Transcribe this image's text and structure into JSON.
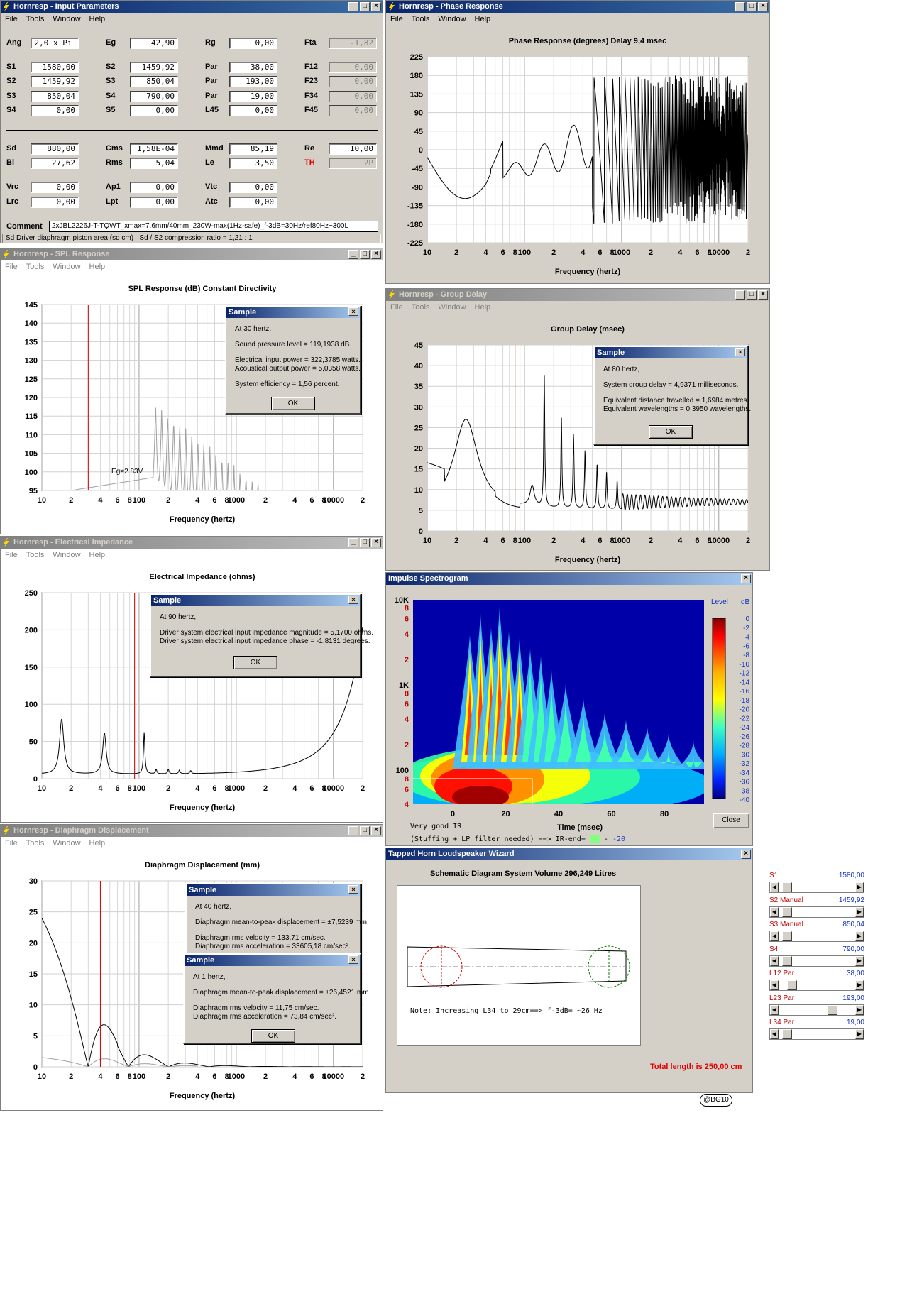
{
  "input_params": {
    "title": "Hornresp - Input Parameters",
    "menu": [
      "File",
      "Tools",
      "Window",
      "Help"
    ],
    "fields": [
      {
        "label": "Ang",
        "value": "2,0 x Pi"
      },
      {
        "label": "Eg",
        "value": "42,90"
      },
      {
        "label": "Rg",
        "value": "0,00"
      },
      {
        "label": "Fta",
        "value": "-1,82"
      },
      {
        "label": "S1",
        "value": "1580,00"
      },
      {
        "label": "S2",
        "value": "1459,92"
      },
      {
        "label": "Par",
        "value": "38,00"
      },
      {
        "label": "F12",
        "value": "0,00"
      },
      {
        "label": "S2",
        "value": "1459,92"
      },
      {
        "label": "S3",
        "value": "850,04"
      },
      {
        "label": "Par",
        "value": "193,00"
      },
      {
        "label": "F23",
        "value": "0,00"
      },
      {
        "label": "S3",
        "value": "850,04"
      },
      {
        "label": "S4",
        "value": "790,00"
      },
      {
        "label": "Par",
        "value": "19,00"
      },
      {
        "label": "F34",
        "value": "0,00"
      },
      {
        "label": "S4",
        "value": "0,00"
      },
      {
        "label": "S5",
        "value": "0,00"
      },
      {
        "label": "L45",
        "value": "0,00"
      },
      {
        "label": "F45",
        "value": "0,00"
      },
      {
        "label": "Sd",
        "value": "880,00"
      },
      {
        "label": "Cms",
        "value": "1,58E-04"
      },
      {
        "label": "Mmd",
        "value": "85,19"
      },
      {
        "label": "Re",
        "value": "10,00"
      },
      {
        "label": "Bl",
        "value": "27,62"
      },
      {
        "label": "Rms",
        "value": "5,04"
      },
      {
        "label": "Le",
        "value": "3,50"
      },
      {
        "label": "TH",
        "value": "2P"
      },
      {
        "label": "Vrc",
        "value": "0,00"
      },
      {
        "label": "Ap1",
        "value": "0,00"
      },
      {
        "label": "Vtc",
        "value": "0,00"
      },
      {
        "label": "Lrc",
        "value": "0,00"
      },
      {
        "label": "Lpt",
        "value": "0,00"
      },
      {
        "label": "Atc",
        "value": "0,00"
      }
    ],
    "comment_label": "Comment",
    "comment_value": "2xJBL2226J-T-TQWT_xmax=7.6mm/40mm_230W-max(1Hz-safe)_f-3dB=30Hz/ref80Hz~300L",
    "status_left": "Sd   Driver diaphragm piston area  (sq cm)",
    "status_right": "Sd / S2 compression ratio = 1,21 : 1"
  },
  "spl": {
    "title": "Hornresp - SPL Response",
    "menu": [
      "File",
      "Tools",
      "Window",
      "Help"
    ],
    "chart_title": "SPL Response (dB)    Constant Directivity",
    "x_label": "Frequency (hertz)",
    "y_ticks": [
      "145",
      "140",
      "135",
      "130",
      "125",
      "120",
      "115",
      "110",
      "105",
      "100",
      "95"
    ],
    "x_ticks": [
      "10",
      "2",
      "4",
      "6",
      "8",
      "100",
      "2",
      "4",
      "6",
      "8",
      "1000",
      "2",
      "4",
      "6",
      "8",
      "10000",
      "2"
    ],
    "annotation": "Eg=2.83V",
    "sample": {
      "title": "Sample",
      "lines": [
        "At 30 hertz,",
        "Sound pressure level = 119,1938 dB.",
        "Electrical input power = 322,3785 watts.",
        "Acoustical output power = 5,0358 watts.",
        "System efficiency = 1,56 percent."
      ],
      "ok": "OK"
    }
  },
  "impedance": {
    "title": "Hornresp - Electrical Impedance",
    "menu": [
      "File",
      "Tools",
      "Window",
      "Help"
    ],
    "chart_title": "Electrical Impedance (ohms)",
    "x_label": "Frequency (hertz)",
    "y_ticks": [
      "250",
      "200",
      "150",
      "100",
      "50",
      "0"
    ],
    "x_ticks": [
      "10",
      "2",
      "4",
      "6",
      "8",
      "100",
      "2",
      "4",
      "6",
      "8",
      "1000",
      "2",
      "4",
      "6",
      "8",
      "10000",
      "2"
    ],
    "sample": {
      "title": "Sample",
      "lines": [
        "At 90 hertz,",
        "Driver system electrical input impedance magnitude = 5,1700 ohms.",
        "Driver system electrical input impedance phase = -1,8131 degrees."
      ],
      "ok": "OK"
    }
  },
  "displacement": {
    "title": "Hornresp - Diaphragm Displacement",
    "menu": [
      "File",
      "Tools",
      "Window",
      "Help"
    ],
    "chart_title": "Diaphragm Displacement (mm)",
    "x_label": "Frequency (hertz)",
    "y_ticks": [
      "30",
      "25",
      "20",
      "15",
      "10",
      "5",
      "0"
    ],
    "x_ticks": [
      "10",
      "2",
      "4",
      "6",
      "8",
      "100",
      "2",
      "4",
      "6",
      "8",
      "1000",
      "2",
      "4",
      "6",
      "8",
      "10000",
      "2"
    ],
    "sample1": {
      "title": "Sample",
      "lines": [
        "At 40 hertz,",
        "Diaphragm mean-to-peak displacement = ±7,5239 mm.",
        "Diaphragm rms velocity = 133,71 cm/sec.",
        "Diaphragm rms acceleration = 33605,18 cm/sec²."
      ]
    },
    "sample2": {
      "title": "Sample",
      "lines": [
        "At 1 hertz,",
        "Diaphragm mean-to-peak displacement = ±26,4521 mm.",
        "Diaphragm rms velocity = 11,75 cm/sec.",
        "Diaphragm rms acceleration = 73,84 cm/sec²."
      ],
      "ok": "OK"
    }
  },
  "phase": {
    "title": "Hornresp - Phase Response",
    "menu": [
      "File",
      "Tools",
      "Window",
      "Help"
    ],
    "chart_title": "Phase Response (degrees)    Delay 9,4 msec",
    "x_label": "Frequency (hertz)",
    "y_ticks": [
      "225",
      "180",
      "135",
      "90",
      "45",
      "0",
      "-45",
      "-90",
      "-135",
      "-180",
      "-225"
    ],
    "x_ticks": [
      "10",
      "2",
      "4",
      "6",
      "8",
      "100",
      "2",
      "4",
      "6",
      "8",
      "1000",
      "2",
      "4",
      "6",
      "8",
      "10000",
      "2"
    ]
  },
  "group_delay": {
    "title": "Hornresp - Group Delay",
    "menu": [
      "File",
      "Tools",
      "Window",
      "Help"
    ],
    "chart_title": "Group Delay (msec)",
    "x_label": "Frequency (hertz)",
    "y_ticks": [
      "45",
      "40",
      "35",
      "30",
      "25",
      "20",
      "15",
      "10",
      "5",
      "0"
    ],
    "x_ticks": [
      "10",
      "2",
      "4",
      "6",
      "8",
      "100",
      "2",
      "4",
      "6",
      "8",
      "1000",
      "2",
      "4",
      "6",
      "8",
      "10000",
      "2"
    ],
    "sample": {
      "title": "Sample",
      "lines": [
        "At 80 hertz,",
        "System group delay = 4,9371 milliseconds.",
        "Equivalent distance travelled = 1,6984 metres.",
        "Equivalent wavelengths = 0,3950 wavelengths."
      ],
      "ok": "OK"
    }
  },
  "spectrogram": {
    "title": "Impulse Spectrogram",
    "y_ticks": [
      "10K",
      "8",
      "6",
      "4",
      "2",
      "1K",
      "8",
      "6",
      "4",
      "2",
      "100",
      "8",
      "6",
      "4"
    ],
    "x_ticks": [
      "0",
      "20",
      "40",
      "60",
      "80"
    ],
    "x_label": "Time (msec)",
    "legend_title": "Level",
    "legend_unit": "dB",
    "legend_values": [
      "0",
      "-2",
      "-4",
      "-6",
      "-8",
      "-10",
      "-12",
      "-14",
      "-16",
      "-18",
      "-20",
      "-22",
      "-24",
      "-26",
      "-28",
      "-30",
      "-32",
      "-34",
      "-36",
      "-38",
      "-40"
    ],
    "note1": "Very good IR",
    "note2": "(Stuffing + LP filter needed)  ==>  IR-end=",
    "ir_end_value": "-20",
    "close": "Close"
  },
  "wizard": {
    "title": "Tapped Horn Loudspeaker Wizard",
    "diagram_title": "Schematic Diagram    System Volume 296,249 Litres",
    "note": "Note: Increasing L34 to 29cm==> f-3dB= ~26 Hz",
    "sliders": [
      {
        "label": "S1",
        "value": "1580,00",
        "pos": 0.05
      },
      {
        "label": "S2  Manual",
        "value": "1459,92",
        "pos": 0.05
      },
      {
        "label": "S3  Manual",
        "value": "850,04",
        "pos": 0.05
      },
      {
        "label": "S4",
        "value": "790,00",
        "pos": 0.05
      },
      {
        "label": "L12  Par",
        "value": "38,00",
        "pos": 0.12
      },
      {
        "label": "L23  Par",
        "value": "193,00",
        "pos": 0.72
      },
      {
        "label": "L34  Par",
        "value": "19,00",
        "pos": 0.05
      }
    ],
    "total": "Total length is 250,00 cm"
  },
  "watermark": "@BG10"
}
